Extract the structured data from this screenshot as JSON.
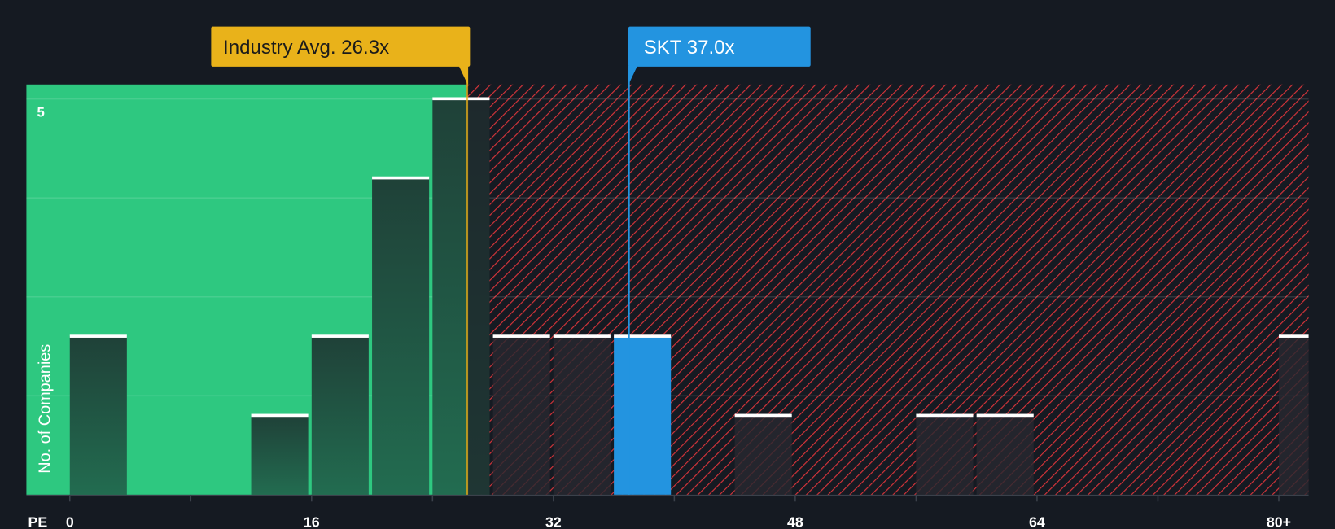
{
  "chart_data": {
    "type": "bar",
    "title": "",
    "xlabel": "PE",
    "ylabel": "No. of Companies",
    "x_ticks": [
      "0",
      "16",
      "32",
      "48",
      "64",
      "80+"
    ],
    "x_tick_values": [
      0,
      16,
      32,
      48,
      64,
      80
    ],
    "y_ticks": [
      "5"
    ],
    "y_tick_values": [
      5
    ],
    "xlim": [
      0,
      82
    ],
    "ylim": [
      0,
      5
    ],
    "bin_width": 4,
    "bins": [
      {
        "start": 0,
        "count": 2
      },
      {
        "start": 12,
        "count": 1
      },
      {
        "start": 16,
        "count": 2
      },
      {
        "start": 20,
        "count": 4
      },
      {
        "start": 24,
        "count": 5
      },
      {
        "start": 28,
        "count": 2
      },
      {
        "start": 32,
        "count": 2
      },
      {
        "start": 36,
        "count": 2,
        "highlight": true
      },
      {
        "start": 44,
        "count": 1
      },
      {
        "start": 56,
        "count": 1
      },
      {
        "start": 60,
        "count": 1
      },
      {
        "start": 80,
        "count": 2
      }
    ],
    "fair_range_end": 25.2,
    "annotations": {
      "industry": {
        "label": "Industry Avg. 26.3x",
        "value": 26.3
      },
      "company": {
        "label": "SKT 37.0x",
        "value": 37.0
      }
    },
    "grid": true,
    "legend": "none"
  },
  "colors": {
    "background": "#151a22",
    "green_zone": "#2ec880",
    "hatch": "#d8343a",
    "industry": "#e9b21a",
    "company": "#2394e0"
  }
}
